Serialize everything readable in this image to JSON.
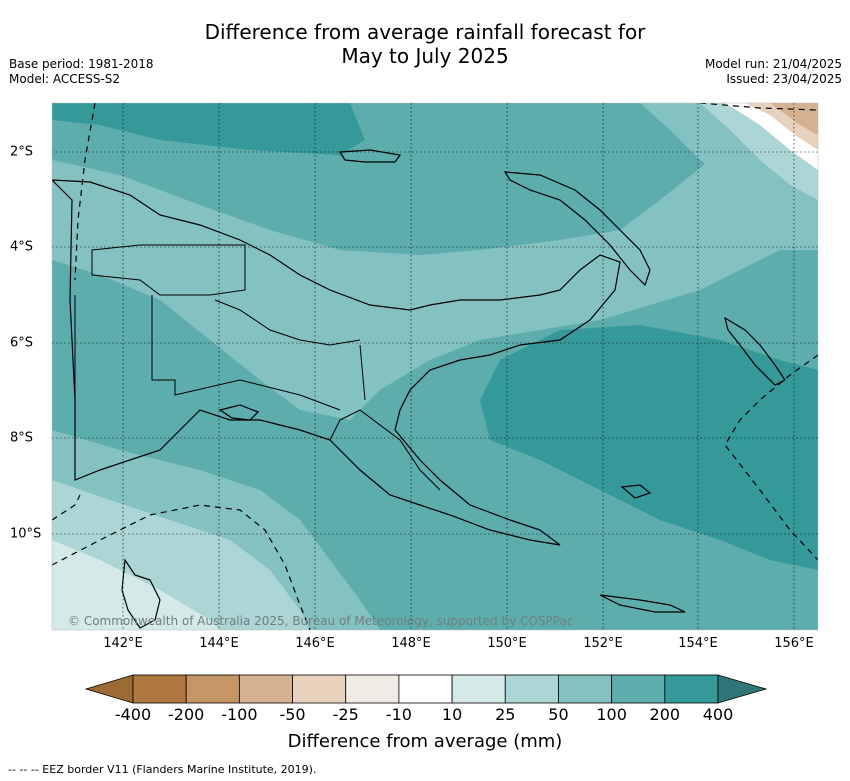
{
  "title_line1": "Difference from average rainfall forecast for",
  "title_line2": "May to July 2025",
  "base_period": "Base period: 1981-2018",
  "model": "Model: ACCESS-S2",
  "model_run": "Model run: 21/04/2025",
  "issued": "Issued: 23/04/2025",
  "copyright": "© Commonwealth of Australia 2025, Bureau of Meteorology, supported by COSPPac",
  "lon_labels": [
    "142°E",
    "144°E",
    "146°E",
    "148°E",
    "150°E",
    "152°E",
    "154°E",
    "156°E"
  ],
  "lat_labels": [
    "2°S",
    "4°S",
    "6°S",
    "8°S",
    "10°S"
  ],
  "colorbar": {
    "title": "Difference from average (mm)",
    "ticks": [
      "-400",
      "-200",
      "-100",
      "-50",
      "-25",
      "-10",
      "10",
      "25",
      "50",
      "100",
      "200",
      "400"
    ],
    "colors": [
      "#9c6a35",
      "#b07841",
      "#c69566",
      "#d4b190",
      "#e8d2bd",
      "#f1ebe6",
      "#ffffff",
      "#d5e9e8",
      "#acd5d5",
      "#84c1c1",
      "#5dadad",
      "#35999a",
      "#2f7777"
    ]
  },
  "footnote": "--  --  -- EEZ border V11 (Flanders Marine Institute, 2019)."
}
